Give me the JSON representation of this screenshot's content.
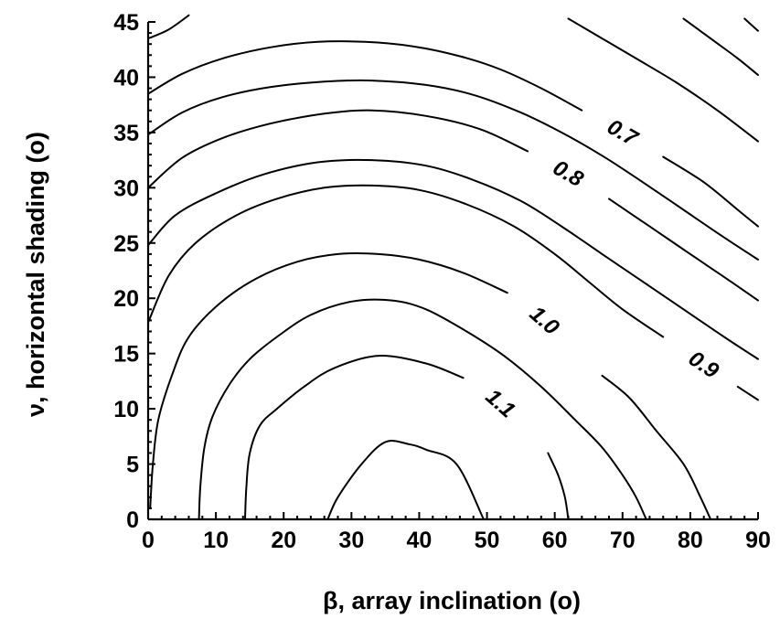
{
  "chart_data": {
    "type": "contour",
    "xlabel": "β, array inclination (o)",
    "ylabel": "ν, horizontal shading (o)",
    "xlim": [
      0,
      90
    ],
    "ylim": [
      0,
      45
    ],
    "xticks": [
      0,
      10,
      20,
      30,
      40,
      50,
      60,
      70,
      80,
      90
    ],
    "yticks": [
      0,
      5,
      10,
      15,
      20,
      25,
      30,
      35,
      40,
      45
    ],
    "grid": false,
    "contours": [
      {
        "label": "",
        "points": [
          [
            26.5,
            0
          ],
          [
            28,
            2
          ],
          [
            31.5,
            5
          ],
          [
            35,
            7
          ],
          [
            38.5,
            6.8
          ],
          [
            41,
            6.3
          ],
          [
            45.5,
            5
          ],
          [
            49.5,
            0
          ]
        ]
      },
      {
        "label": "1.1",
        "points": [
          [
            14.3,
            0
          ],
          [
            14.5,
            3
          ],
          [
            15,
            6
          ],
          [
            16.5,
            8.5
          ],
          [
            19,
            10
          ],
          [
            23,
            12
          ],
          [
            27.5,
            13.7
          ],
          [
            34,
            14.8
          ],
          [
            41,
            14.1
          ],
          [
            46.5,
            12.8
          ],
          [
            52,
            10.5
          ],
          [
            56,
            8
          ],
          [
            59,
            6
          ],
          [
            60.5,
            4
          ],
          [
            61.5,
            2
          ],
          [
            62,
            0
          ]
        ]
      },
      {
        "label": "",
        "points": [
          [
            7.5,
            0
          ],
          [
            7.7,
            3
          ],
          [
            8.3,
            6.5
          ],
          [
            9.5,
            9.3
          ],
          [
            12,
            12.2
          ],
          [
            15,
            14.5
          ],
          [
            19,
            16.5
          ],
          [
            24,
            18.5
          ],
          [
            30,
            19.7
          ],
          [
            36,
            19.8
          ],
          [
            41,
            19
          ],
          [
            47,
            17
          ],
          [
            52.5,
            14.8
          ],
          [
            58,
            12
          ],
          [
            63,
            9
          ],
          [
            67,
            6.5
          ],
          [
            70,
            4
          ],
          [
            72,
            2
          ],
          [
            73.5,
            0
          ]
        ]
      },
      {
        "label": "1.0",
        "points": [
          [
            0.3,
            1
          ],
          [
            0.7,
            5
          ],
          [
            1.5,
            9
          ],
          [
            3.5,
            13
          ],
          [
            6,
            16.5
          ],
          [
            10.5,
            19.5
          ],
          [
            16,
            21.8
          ],
          [
            22,
            23.3
          ],
          [
            28,
            24
          ],
          [
            34,
            24
          ],
          [
            40,
            23.5
          ],
          [
            46.5,
            22.3
          ],
          [
            53,
            20.5
          ],
          [
            58.5,
            18
          ],
          [
            63,
            15.5
          ],
          [
            67,
            13
          ],
          [
            71,
            11
          ],
          [
            75,
            8
          ],
          [
            79,
            5
          ],
          [
            81.5,
            2
          ],
          [
            83,
            0
          ]
        ]
      },
      {
        "label": "0.9",
        "points": [
          [
            0,
            17.8
          ],
          [
            3,
            22
          ],
          [
            7,
            25
          ],
          [
            13,
            27.5
          ],
          [
            19,
            29
          ],
          [
            26,
            30
          ],
          [
            33,
            30.2
          ],
          [
            40,
            29.8
          ],
          [
            47,
            28.5
          ],
          [
            54,
            26.5
          ],
          [
            60,
            24
          ],
          [
            65,
            21.5
          ],
          [
            70,
            19
          ],
          [
            76,
            16.5
          ],
          [
            82,
            14
          ],
          [
            87,
            12
          ],
          [
            90,
            10.8
          ]
        ]
      },
      {
        "label": "",
        "points": [
          [
            0,
            24.8
          ],
          [
            4,
            27.5
          ],
          [
            10,
            29.5
          ],
          [
            17,
            31.2
          ],
          [
            25,
            32.3
          ],
          [
            33,
            32.5
          ],
          [
            41,
            32
          ],
          [
            48,
            30.7
          ],
          [
            55,
            28.8
          ],
          [
            61,
            26.5
          ],
          [
            67,
            24
          ],
          [
            73,
            21.5
          ],
          [
            79,
            19
          ],
          [
            85,
            16.5
          ],
          [
            90,
            14.5
          ]
        ]
      },
      {
        "label": "0.8",
        "points": [
          [
            0,
            30
          ],
          [
            5,
            32.7
          ],
          [
            11,
            34.5
          ],
          [
            18,
            35.8
          ],
          [
            26,
            36.7
          ],
          [
            33,
            37
          ],
          [
            41,
            36.5
          ],
          [
            49,
            35.3
          ],
          [
            56,
            33.3
          ],
          [
            62,
            31.3
          ],
          [
            68,
            29
          ],
          [
            74,
            26.5
          ],
          [
            80,
            24
          ],
          [
            86,
            21.5
          ],
          [
            90,
            19.8
          ]
        ]
      },
      {
        "label": "",
        "points": [
          [
            0,
            34.8
          ],
          [
            5,
            36.8
          ],
          [
            11,
            38.2
          ],
          [
            18,
            39.1
          ],
          [
            26,
            39.6
          ],
          [
            33,
            39.7
          ],
          [
            41,
            39.3
          ],
          [
            48,
            38.4
          ],
          [
            55,
            36.8
          ],
          [
            61,
            35
          ],
          [
            67,
            32.9
          ],
          [
            73,
            30.5
          ],
          [
            79,
            28
          ],
          [
            85,
            25.5
          ],
          [
            90,
            23.5
          ]
        ]
      },
      {
        "label": "0.7",
        "points": [
          [
            0,
            38.5
          ],
          [
            5,
            40.3
          ],
          [
            11,
            41.7
          ],
          [
            18,
            42.7
          ],
          [
            25,
            43.2
          ],
          [
            32,
            43.2
          ],
          [
            39,
            42.8
          ],
          [
            46,
            41.9
          ],
          [
            52,
            40.7
          ],
          [
            58,
            39
          ],
          [
            64,
            37
          ],
          [
            70,
            35
          ],
          [
            76,
            32.8
          ],
          [
            82,
            30.5
          ],
          [
            87,
            28
          ],
          [
            90,
            26.5
          ]
        ]
      },
      {
        "label": "",
        "points": [
          [
            0,
            43.5
          ],
          [
            3,
            44.3
          ],
          [
            6,
            45.6
          ]
        ]
      },
      {
        "label": "",
        "points": [
          [
            62,
            45.3
          ],
          [
            67,
            43.5
          ],
          [
            72,
            41.7
          ],
          [
            78,
            39.5
          ],
          [
            84,
            37
          ],
          [
            90,
            34.2
          ]
        ]
      },
      {
        "label": "",
        "points": [
          [
            79,
            45.3
          ],
          [
            83,
            43.5
          ],
          [
            87,
            41.7
          ],
          [
            90,
            40.2
          ]
        ]
      },
      {
        "label": "",
        "points": [
          [
            88,
            45.3
          ],
          [
            90,
            44.2
          ]
        ]
      }
    ]
  }
}
